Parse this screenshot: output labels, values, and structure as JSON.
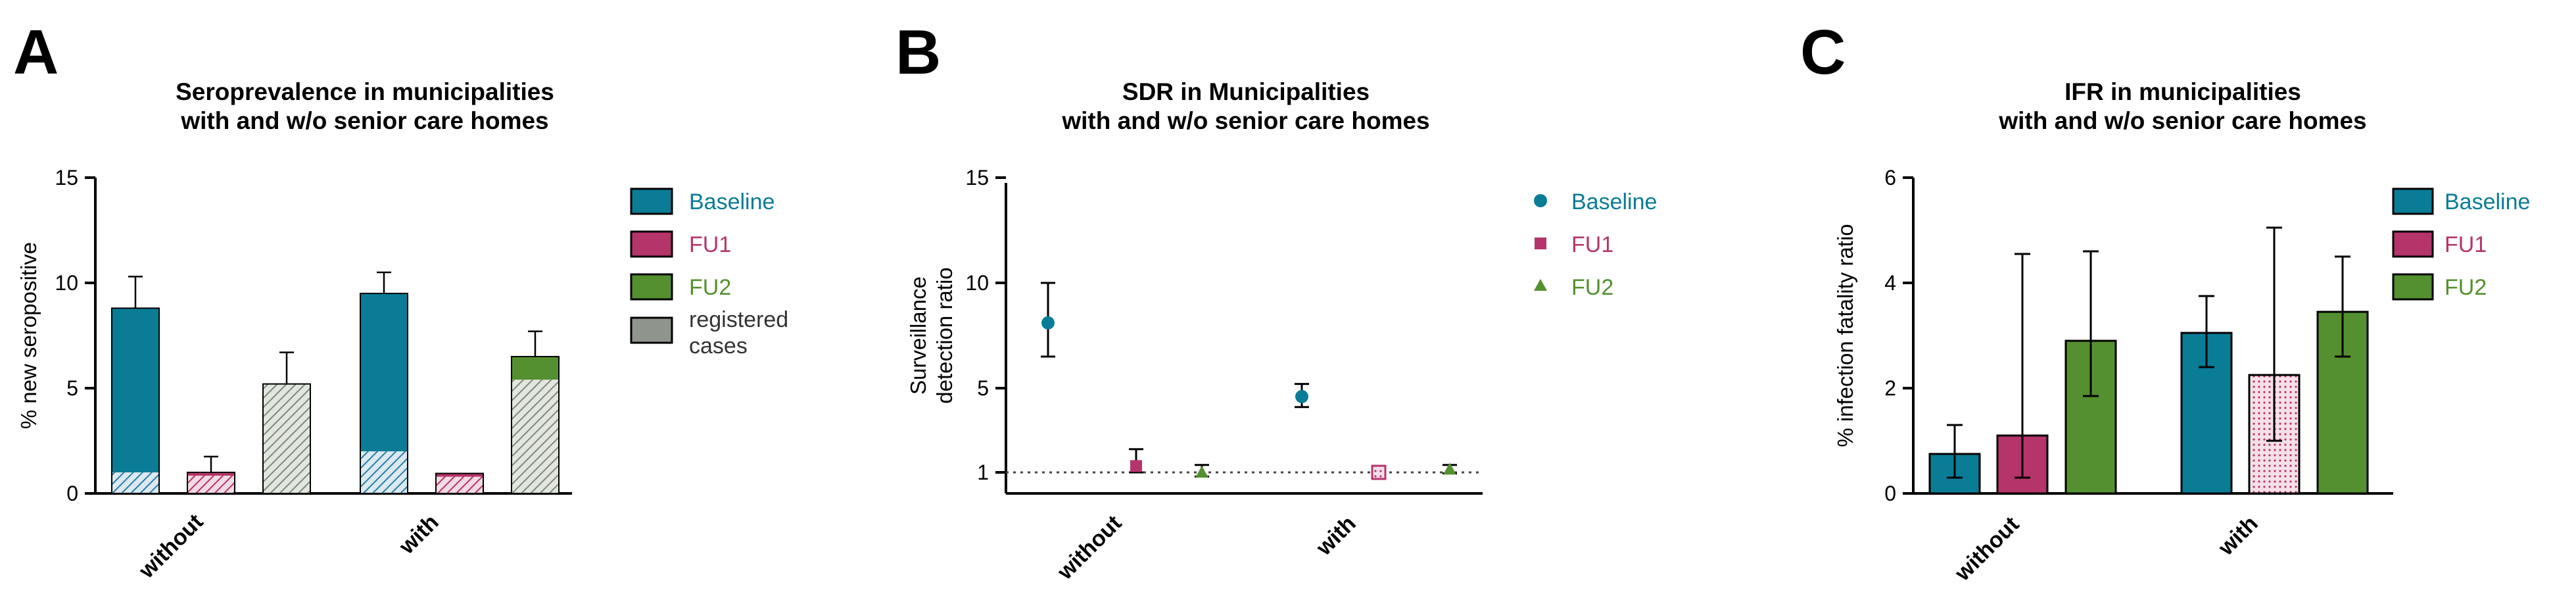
{
  "colors": {
    "baseline": "#0a7c96",
    "fu1": "#b5356a",
    "fu2": "#54902f",
    "registered": "#8f948d",
    "axis": "#000000"
  },
  "panels": {
    "a": {
      "letter": "A"
    },
    "b": {
      "letter": "B"
    },
    "c": {
      "letter": "C"
    }
  },
  "chart_data": [
    {
      "type": "bar",
      "title_lines": [
        "Seroprevalence in municipalities",
        "with and  w/o senior care homes"
      ],
      "ylabel": "%  new seropositive",
      "ylim": [
        0,
        15
      ],
      "yticks": [
        0,
        5,
        10,
        15
      ],
      "categories": [
        "without",
        "with"
      ],
      "series": [
        {
          "name": "Baseline",
          "values": [
            8.8,
            9.5
          ],
          "hatched_base": [
            1.0,
            2.0
          ],
          "error_high": [
            10.3,
            10.5
          ]
        },
        {
          "name": "FU1",
          "values": [
            1.0,
            0.95
          ],
          "error_high": [
            1.75,
            null
          ]
        },
        {
          "name": "FU2",
          "values": [
            5.2,
            6.5
          ],
          "hatched_base": [
            5.2,
            5.4
          ],
          "error_high": [
            6.7,
            7.7
          ]
        }
      ],
      "legend": [
        "Baseline",
        "FU1",
        "FU2",
        "registered",
        "cases"
      ]
    },
    {
      "type": "scatter",
      "title_lines": [
        "SDR in Municipalities",
        "with and w/o senior care homes"
      ],
      "ylabel_lines": [
        "Surveillance",
        "detection ratio"
      ],
      "ylim": [
        0,
        15
      ],
      "yticks": [
        1,
        5,
        10,
        15
      ],
      "reference_line": 1,
      "categories": [
        "without",
        "with"
      ],
      "series": [
        {
          "name": "Baseline",
          "marker": "circle",
          "values": [
            8.1,
            4.6
          ],
          "error_low": [
            6.5,
            4.1
          ],
          "error_high": [
            10.0,
            5.2
          ]
        },
        {
          "name": "FU1",
          "marker": "square",
          "values": [
            1.3,
            1.0
          ],
          "error_low": [
            1.0,
            null
          ],
          "error_high": [
            2.1,
            null
          ]
        },
        {
          "name": "FU2",
          "marker": "triangle",
          "values": [
            1.0,
            1.15
          ],
          "error_low": [
            0.8,
            0.95
          ],
          "error_high": [
            1.35,
            1.35
          ]
        }
      ],
      "legend": [
        "Baseline",
        "FU1",
        "FU2"
      ]
    },
    {
      "type": "bar",
      "title_lines": [
        "IFR in municipalities",
        "with and w/o senior care homes"
      ],
      "ylabel": "% infection fatality ratio",
      "ylim": [
        0,
        6
      ],
      "yticks": [
        0,
        2,
        4,
        6
      ],
      "categories": [
        "without",
        "with"
      ],
      "series": [
        {
          "name": "Baseline",
          "values": [
            0.75,
            3.05
          ],
          "error_low": [
            0.3,
            2.4
          ],
          "error_high": [
            1.3,
            3.75
          ]
        },
        {
          "name": "FU1",
          "values": [
            1.1,
            2.25
          ],
          "error_low": [
            0.3,
            1.0
          ],
          "error_high": [
            4.55,
            5.05
          ]
        },
        {
          "name": "FU2",
          "values": [
            2.9,
            3.45
          ],
          "error_low": [
            1.85,
            2.6
          ],
          "error_high": [
            4.6,
            4.5
          ]
        }
      ],
      "legend": [
        "Baseline",
        "FU1",
        "FU2"
      ]
    }
  ]
}
